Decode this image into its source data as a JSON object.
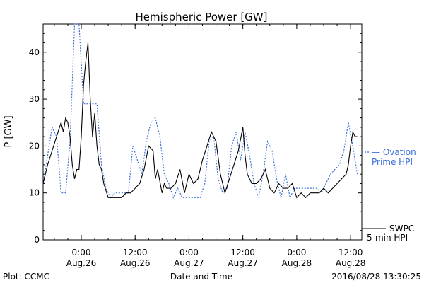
{
  "chart_data": {
    "type": "line",
    "title": "Hemispheric Power [GW]",
    "xlabel": "Date and Time",
    "ylabel": "P [GW]",
    "ylim": [
      0,
      46
    ],
    "y_ticks": [
      0,
      10,
      20,
      30,
      40
    ],
    "xlim": [
      "2016-08-25T15:30",
      "2016-08-28T14:30"
    ],
    "x_ticks": [
      {
        "time": "2016-08-26T00:00",
        "label1": "0:00",
        "label2": "Aug.26"
      },
      {
        "time": "2016-08-26T12:00",
        "label1": "12:00",
        "label2": "Aug.26"
      },
      {
        "time": "2016-08-27T00:00",
        "label1": "0:00",
        "label2": "Aug.27"
      },
      {
        "time": "2016-08-27T12:00",
        "label1": "12:00",
        "label2": "Aug.27"
      },
      {
        "time": "2016-08-28T00:00",
        "label1": "0:00",
        "label2": "Aug.28"
      },
      {
        "time": "2016-08-28T12:00",
        "label1": "12:00",
        "label2": "Aug.28"
      }
    ],
    "grid": false,
    "legend": "right",
    "series": [
      {
        "name": "SWPC 5-min HPI",
        "legend_lines": [
          "SWPC",
          "5-min HPI"
        ],
        "color": "#000000",
        "style": "solid",
        "x": [
          "2016-08-25T15:30",
          "2016-08-25T16:30",
          "2016-08-25T17:30",
          "2016-08-25T18:30",
          "2016-08-25T19:30",
          "2016-08-25T20:00",
          "2016-08-25T20:30",
          "2016-08-25T21:00",
          "2016-08-25T21:30",
          "2016-08-25T22:00",
          "2016-08-25T22:30",
          "2016-08-25T23:00",
          "2016-08-25T23:30",
          "2016-08-26T00:00",
          "2016-08-26T00:30",
          "2016-08-26T01:00",
          "2016-08-26T01:30",
          "2016-08-26T02:00",
          "2016-08-26T02:30",
          "2016-08-26T03:00",
          "2016-08-26T03:30",
          "2016-08-26T04:00",
          "2016-08-26T04:30",
          "2016-08-26T05:00",
          "2016-08-26T06:00",
          "2016-08-26T07:00",
          "2016-08-26T08:00",
          "2016-08-26T09:00",
          "2016-08-26T10:00",
          "2016-08-26T11:00",
          "2016-08-26T12:00",
          "2016-08-26T13:00",
          "2016-08-26T14:00",
          "2016-08-26T15:00",
          "2016-08-26T16:00",
          "2016-08-26T16:30",
          "2016-08-26T17:00",
          "2016-08-26T18:00",
          "2016-08-26T18:30",
          "2016-08-26T19:00",
          "2016-08-26T20:00",
          "2016-08-26T21:00",
          "2016-08-26T22:00",
          "2016-08-26T23:00",
          "2016-08-27T00:00",
          "2016-08-27T01:00",
          "2016-08-27T02:00",
          "2016-08-27T03:00",
          "2016-08-27T04:00",
          "2016-08-27T05:00",
          "2016-08-27T06:00",
          "2016-08-27T07:00",
          "2016-08-27T08:00",
          "2016-08-27T09:00",
          "2016-08-27T10:00",
          "2016-08-27T11:00",
          "2016-08-27T12:00",
          "2016-08-27T12:30",
          "2016-08-27T13:00",
          "2016-08-27T14:00",
          "2016-08-27T15:00",
          "2016-08-27T16:00",
          "2016-08-27T17:00",
          "2016-08-27T18:00",
          "2016-08-27T19:00",
          "2016-08-27T20:00",
          "2016-08-27T21:00",
          "2016-08-27T22:00",
          "2016-08-27T23:00",
          "2016-08-28T00:00",
          "2016-08-28T01:00",
          "2016-08-28T02:00",
          "2016-08-28T03:00",
          "2016-08-28T04:00",
          "2016-08-28T05:00",
          "2016-08-28T06:00",
          "2016-08-28T07:00",
          "2016-08-28T08:00",
          "2016-08-28T09:00",
          "2016-08-28T10:00",
          "2016-08-28T11:00",
          "2016-08-28T11:30",
          "2016-08-28T12:00",
          "2016-08-28T12:30",
          "2016-08-28T13:00",
          "2016-08-28T13:30"
        ],
        "y": [
          12,
          16,
          19,
          22,
          25,
          23,
          26,
          25,
          22,
          16,
          13,
          15,
          15,
          22,
          33,
          38,
          42,
          30,
          22,
          27,
          20,
          16,
          15,
          12,
          9,
          9,
          9,
          9,
          10,
          10,
          11,
          12,
          15,
          20,
          19,
          13,
          15,
          10,
          12,
          11,
          11,
          12,
          15,
          10,
          14,
          12,
          13,
          17,
          20,
          23,
          21,
          14,
          10,
          13,
          16,
          19,
          24,
          18,
          14,
          12,
          12,
          13,
          15,
          11,
          10,
          12,
          11,
          11,
          12,
          9,
          10,
          9,
          10,
          10,
          10,
          11,
          10,
          11,
          12,
          13,
          14,
          16,
          20,
          23,
          22,
          22
        ]
      },
      {
        "name": "Ovation Prime HPI",
        "legend_lines": [
          "— Ovation",
          "Prime HPI"
        ],
        "color": "#3a6fd8",
        "style": "dotted",
        "x": [
          "2016-08-25T15:30",
          "2016-08-25T16:30",
          "2016-08-25T17:30",
          "2016-08-25T18:30",
          "2016-08-25T19:30",
          "2016-08-25T20:30",
          "2016-08-25T21:30",
          "2016-08-25T22:30",
          "2016-08-25T23:30",
          "2016-08-26T00:30",
          "2016-08-26T01:30",
          "2016-08-26T02:30",
          "2016-08-26T03:30",
          "2016-08-26T04:30",
          "2016-08-26T05:30",
          "2016-08-26T06:30",
          "2016-08-26T07:30",
          "2016-08-26T08:30",
          "2016-08-26T09:30",
          "2016-08-26T10:30",
          "2016-08-26T11:30",
          "2016-08-26T12:30",
          "2016-08-26T13:30",
          "2016-08-26T14:30",
          "2016-08-26T15:30",
          "2016-08-26T16:30",
          "2016-08-26T17:30",
          "2016-08-26T18:30",
          "2016-08-26T19:30",
          "2016-08-26T20:30",
          "2016-08-26T21:30",
          "2016-08-26T22:30",
          "2016-08-26T23:30",
          "2016-08-27T00:30",
          "2016-08-27T01:30",
          "2016-08-27T02:30",
          "2016-08-27T03:30",
          "2016-08-27T04:30",
          "2016-08-27T05:30",
          "2016-08-27T06:30",
          "2016-08-27T07:30",
          "2016-08-27T08:30",
          "2016-08-27T09:30",
          "2016-08-27T10:30",
          "2016-08-27T11:30",
          "2016-08-27T12:30",
          "2016-08-27T13:30",
          "2016-08-27T14:30",
          "2016-08-27T15:30",
          "2016-08-27T16:30",
          "2016-08-27T17:30",
          "2016-08-27T18:30",
          "2016-08-27T19:30",
          "2016-08-27T20:30",
          "2016-08-27T21:30",
          "2016-08-27T22:30",
          "2016-08-27T23:30",
          "2016-08-28T00:30",
          "2016-08-28T01:30",
          "2016-08-28T02:30",
          "2016-08-28T03:30",
          "2016-08-28T04:30",
          "2016-08-28T05:30",
          "2016-08-28T06:30",
          "2016-08-28T07:30",
          "2016-08-28T08:30",
          "2016-08-28T09:30",
          "2016-08-28T10:30",
          "2016-08-28T11:30",
          "2016-08-28T12:30",
          "2016-08-28T13:30"
        ],
        "y": [
          12,
          18,
          24,
          22,
          10,
          10,
          21,
          46,
          46,
          29,
          29,
          29,
          29,
          16,
          11,
          9,
          10,
          10,
          10,
          10,
          20,
          17,
          14,
          21,
          25,
          26,
          22,
          14,
          12,
          9,
          11,
          9,
          9,
          9,
          9,
          9,
          12,
          21,
          22,
          13,
          10,
          11,
          20,
          23,
          17,
          23,
          18,
          12,
          9,
          14,
          21,
          19,
          13,
          9,
          14,
          9,
          11,
          11,
          11,
          11,
          11,
          11,
          10,
          12,
          14,
          15,
          16,
          19,
          25,
          20,
          14
        ]
      }
    ]
  },
  "footer": {
    "left": "Plot: CCMC",
    "right": "2016/08/28 13:30:25"
  }
}
